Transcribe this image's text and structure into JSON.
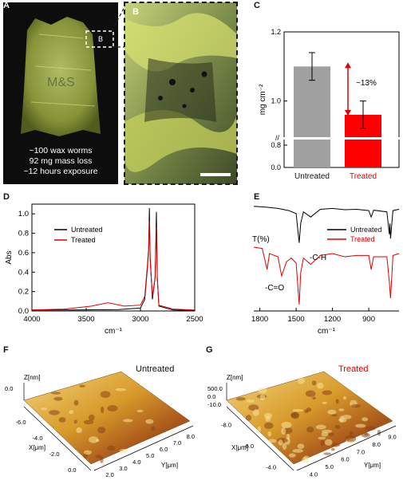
{
  "panels": {
    "A": "A",
    "B": "B",
    "C": "C",
    "D": "D",
    "E": "E",
    "F": "F",
    "G": "G"
  },
  "photo_a": {
    "inset_label": "B",
    "caption": [
      "~100 wax worms",
      "92 mg mass loss",
      "~12 hours exposure"
    ]
  },
  "chart_c": {
    "type": "bar",
    "categories": [
      "Untreated",
      "Treated"
    ],
    "values": [
      1.1,
      0.96
    ],
    "errors": [
      0.04,
      0.04
    ],
    "colors": [
      "#a0a0a0",
      "#ff0000"
    ],
    "ylabel": "mg cm⁻²",
    "yticks": [
      0.0,
      0.8,
      0.9,
      1.0,
      1.2
    ],
    "ytick_labels": [
      "0.0",
      "0.8",
      "1.0",
      "1.2"
    ],
    "axis_break": true,
    "annotation": "~13%",
    "label_colors": [
      "#111111",
      "#e00000"
    ]
  },
  "chart_d": {
    "type": "line",
    "xlabel": "cm⁻¹",
    "ylabel": "Abs",
    "xlim": [
      4000,
      2500
    ],
    "ylim": [
      0,
      1.1
    ],
    "xticks": [
      4000,
      3500,
      3000,
      2500
    ],
    "yticks": [
      0.0,
      0.2,
      0.4,
      0.6,
      0.8,
      1.0
    ],
    "legend": [
      "Untreated",
      "Treated"
    ],
    "series": [
      {
        "name": "Untreated",
        "color": "#000000",
        "points": [
          [
            4000,
            0.01
          ],
          [
            3600,
            0.01
          ],
          [
            3200,
            0.015
          ],
          [
            3000,
            0.03
          ],
          [
            2960,
            0.12
          ],
          [
            2935,
            0.45
          ],
          [
            2925,
            0.62
          ],
          [
            2918,
            1.06
          ],
          [
            2910,
            0.55
          ],
          [
            2890,
            0.12
          ],
          [
            2865,
            0.35
          ],
          [
            2853,
            1.02
          ],
          [
            2845,
            0.35
          ],
          [
            2830,
            0.05
          ],
          [
            2700,
            0.01
          ],
          [
            2500,
            0.005
          ]
        ]
      },
      {
        "name": "Treated",
        "color": "#e00000",
        "points": [
          [
            4000,
            0.01
          ],
          [
            3700,
            0.02
          ],
          [
            3450,
            0.05
          ],
          [
            3300,
            0.085
          ],
          [
            3150,
            0.05
          ],
          [
            3000,
            0.06
          ],
          [
            2960,
            0.15
          ],
          [
            2935,
            0.48
          ],
          [
            2925,
            0.65
          ],
          [
            2918,
            0.93
          ],
          [
            2910,
            0.52
          ],
          [
            2890,
            0.15
          ],
          [
            2865,
            0.35
          ],
          [
            2853,
            0.86
          ],
          [
            2845,
            0.33
          ],
          [
            2830,
            0.06
          ],
          [
            2700,
            0.02
          ],
          [
            2500,
            0.01
          ]
        ]
      }
    ]
  },
  "chart_e": {
    "type": "line",
    "xlabel": "cm⁻¹",
    "ylabel": "T(%)",
    "xlim": [
      1850,
      650
    ],
    "xticks": [
      1800,
      1500,
      1200,
      900
    ],
    "legend": [
      "Untreated",
      "Treated"
    ],
    "annotations": [
      "-C-H",
      "-C=O"
    ],
    "series": [
      {
        "name": "Untreated",
        "color": "#000000",
        "points": [
          [
            1850,
            0.95
          ],
          [
            1750,
            0.93
          ],
          [
            1650,
            0.9
          ],
          [
            1560,
            0.85
          ],
          [
            1500,
            0.78
          ],
          [
            1475,
            0.1
          ],
          [
            1462,
            0.55
          ],
          [
            1440,
            0.82
          ],
          [
            1380,
            0.7
          ],
          [
            1300,
            0.88
          ],
          [
            1200,
            0.9
          ],
          [
            1100,
            0.87
          ],
          [
            1000,
            0.88
          ],
          [
            900,
            0.85
          ],
          [
            880,
            0.7
          ],
          [
            860,
            0.86
          ],
          [
            750,
            0.82
          ],
          [
            730,
            0.3
          ],
          [
            725,
            0.55
          ],
          [
            720,
            0.2
          ],
          [
            700,
            0.85
          ],
          [
            650,
            0.88
          ]
        ]
      },
      {
        "name": "Treated",
        "color": "#e00000",
        "points": [
          [
            1850,
            0.95
          ],
          [
            1780,
            0.93
          ],
          [
            1740,
            0.6
          ],
          [
            1720,
            0.85
          ],
          [
            1650,
            0.8
          ],
          [
            1620,
            0.5
          ],
          [
            1580,
            0.72
          ],
          [
            1540,
            0.78
          ],
          [
            1500,
            0.7
          ],
          [
            1475,
            0.05
          ],
          [
            1462,
            0.55
          ],
          [
            1440,
            0.78
          ],
          [
            1380,
            0.68
          ],
          [
            1300,
            0.82
          ],
          [
            1200,
            0.85
          ],
          [
            1100,
            0.8
          ],
          [
            1000,
            0.82
          ],
          [
            900,
            0.82
          ],
          [
            880,
            0.6
          ],
          [
            860,
            0.8
          ],
          [
            750,
            0.8
          ],
          [
            730,
            0.4
          ],
          [
            720,
            0.15
          ],
          [
            700,
            0.82
          ],
          [
            650,
            0.85
          ]
        ]
      }
    ]
  },
  "afm_f": {
    "title": "Untreated",
    "title_color": "#111111",
    "z_axis": {
      "label": "Z[nm]",
      "ticks": [
        "0.0"
      ]
    },
    "x_axis": {
      "label": "X[μm]",
      "ticks": [
        "-6.0",
        "-4.0",
        "-2.0",
        "0.0"
      ]
    },
    "y_axis": {
      "label": "Y[μm]",
      "ticks": [
        "2.0",
        "3.0",
        "4.0",
        "5.0",
        "6.0",
        "7.0",
        "8.0"
      ]
    }
  },
  "afm_g": {
    "title": "Treated",
    "title_color": "#e00000",
    "z_axis": {
      "label": "Z[nm]",
      "ticks": [
        "500.0",
        "0.0",
        "-10.0"
      ]
    },
    "x_axis": {
      "label": "X[μm]",
      "ticks": [
        "-8.0",
        "-6.0",
        "-4.0"
      ]
    },
    "y_axis": {
      "label": "Y[μm]",
      "ticks": [
        "4.0",
        "5.0",
        "6.0",
        "7.0",
        "8.0",
        "9.0"
      ]
    }
  }
}
